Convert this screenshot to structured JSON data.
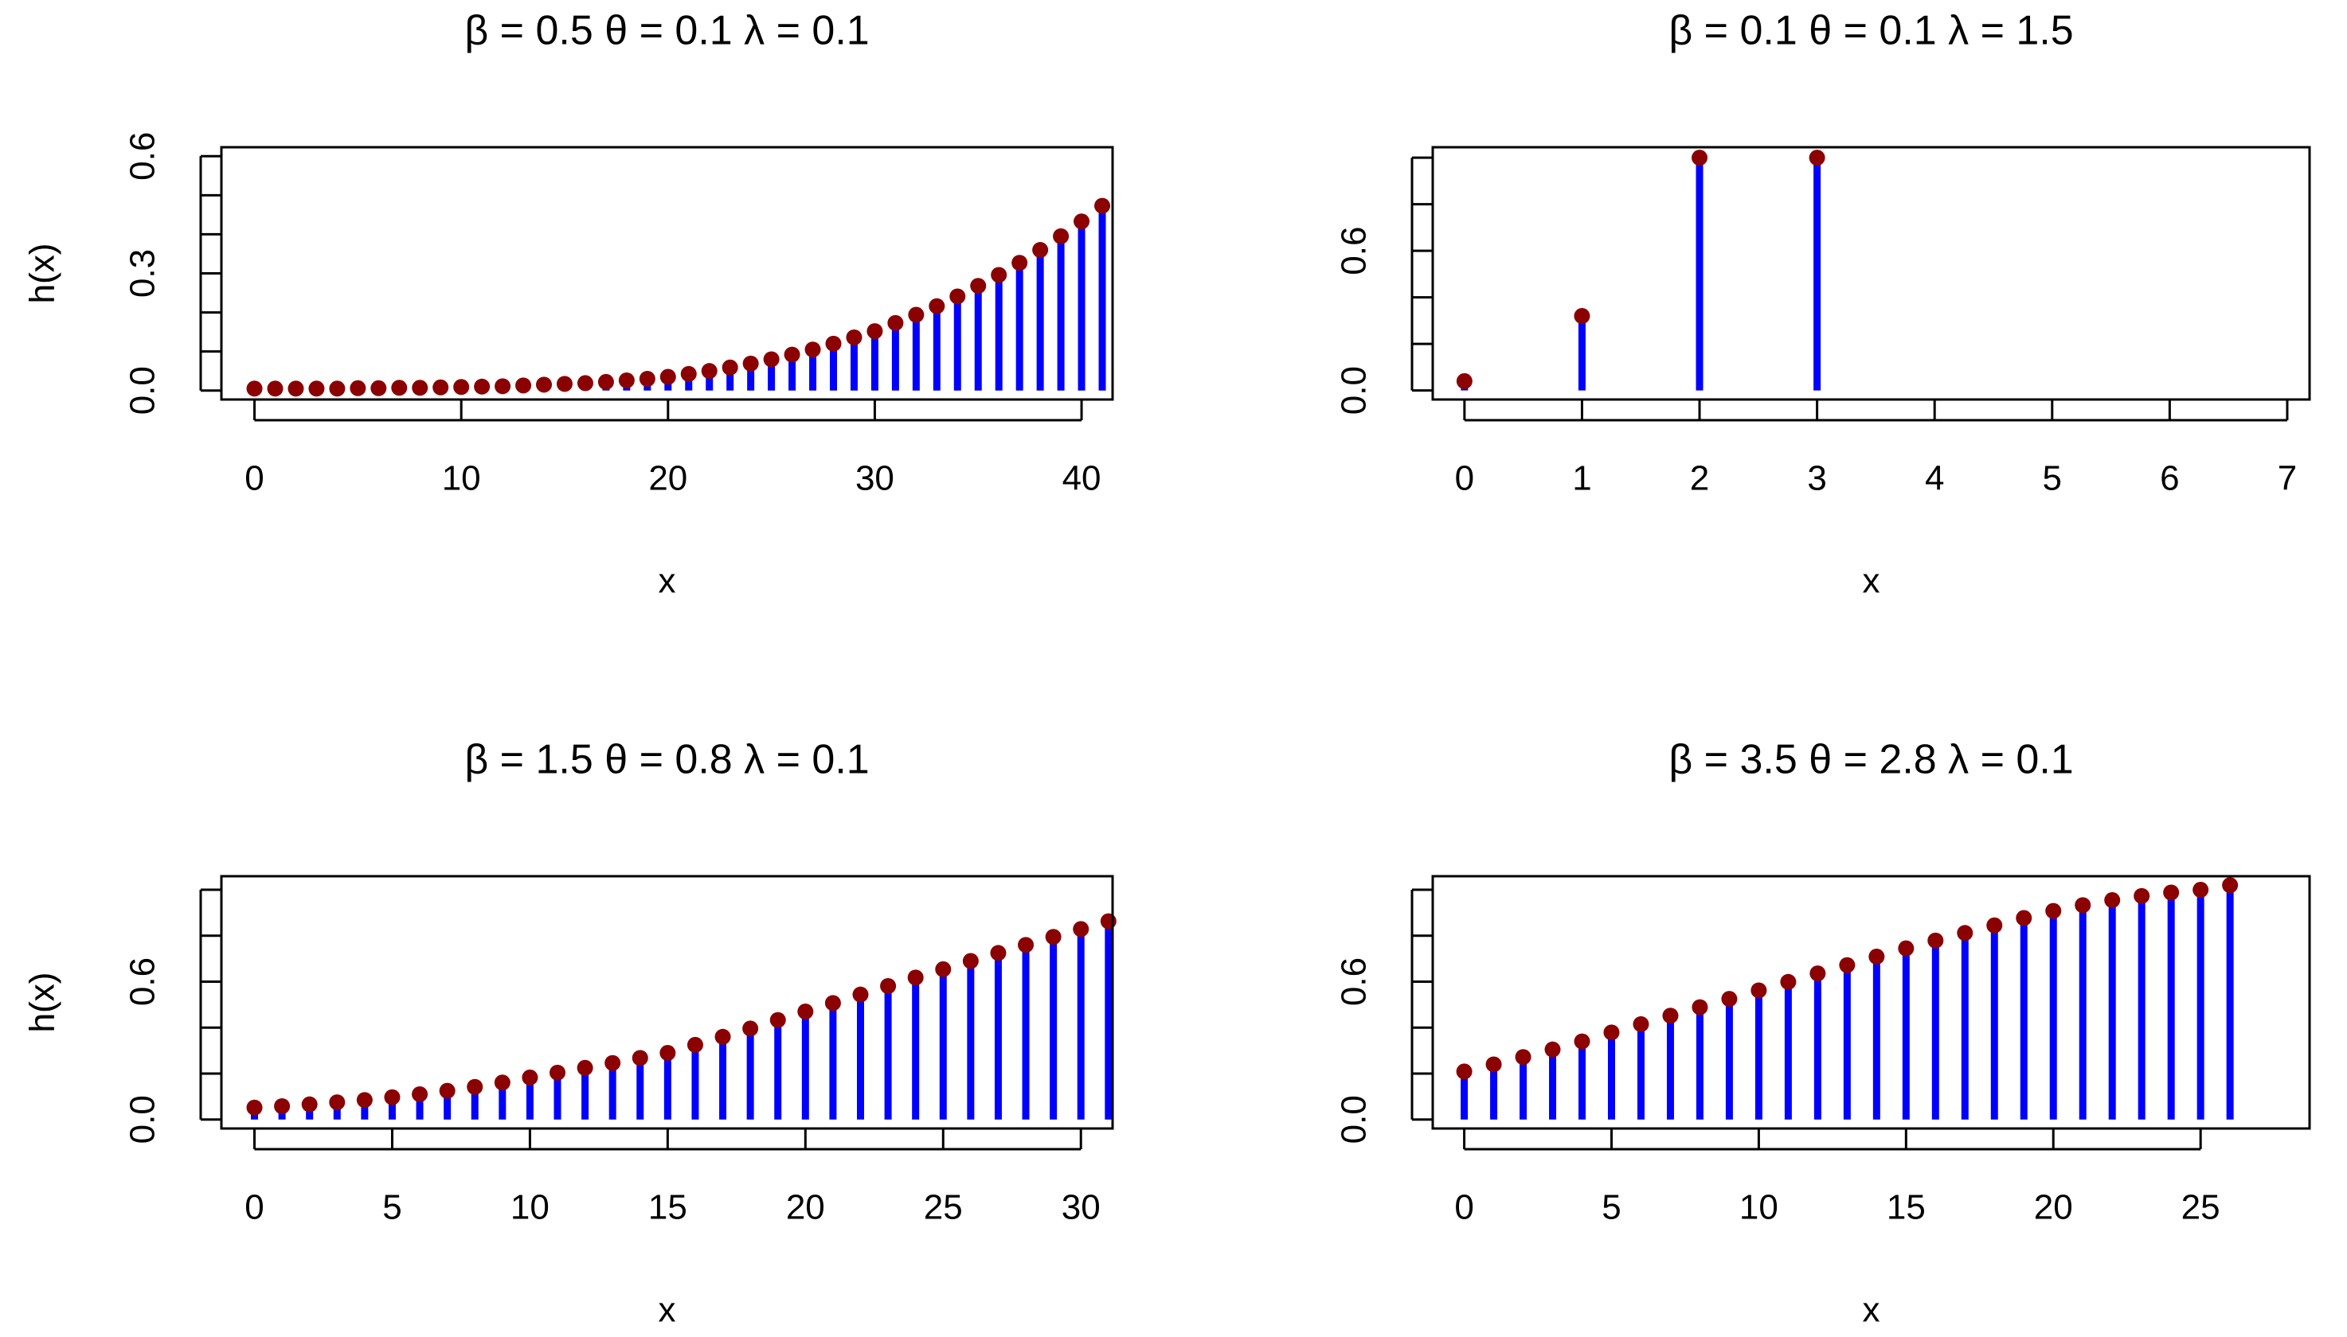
{
  "chart_data": [
    {
      "type": "stem",
      "title": "β = 0.5 θ = 0.1 λ = 0.1",
      "x_label": "x",
      "y_label": "h(x)",
      "x": [
        0,
        1,
        2,
        3,
        4,
        5,
        6,
        7,
        8,
        9,
        10,
        11,
        12,
        13,
        14,
        15,
        16,
        17,
        18,
        19,
        20,
        21,
        22,
        23,
        24,
        25,
        26,
        27,
        28,
        29,
        30,
        31,
        32,
        33,
        34,
        35,
        36,
        37,
        38,
        39,
        40,
        41
      ],
      "values": [
        0.005,
        0.005,
        0.005,
        0.005,
        0.005,
        0.006,
        0.006,
        0.007,
        0.007,
        0.008,
        0.009,
        0.01,
        0.011,
        0.013,
        0.015,
        0.017,
        0.019,
        0.022,
        0.026,
        0.03,
        0.035,
        0.0425,
        0.05,
        0.059,
        0.069,
        0.08,
        0.092,
        0.105,
        0.12,
        0.136,
        0.152,
        0.173,
        0.194,
        0.216,
        0.241,
        0.268,
        0.296,
        0.327,
        0.36,
        0.395,
        0.433,
        0.473
      ],
      "stem_color": "#0000ff",
      "point_color": "#8b0000",
      "xlim": [
        -1.6,
        41.5
      ],
      "ylim": [
        -0.023,
        0.623
      ],
      "xticks": [
        0,
        10,
        20,
        30,
        40
      ],
      "yticks": [
        {
          "value": 0,
          "label": "0.0"
        },
        {
          "value": 0.3,
          "label": "0.3"
        },
        {
          "value": 0.6,
          "label": "0.6"
        }
      ],
      "yminor_ticks": [
        0.1,
        0.2,
        0.4,
        0.5
      ]
    },
    {
      "type": "stem",
      "title": "β = 0.1 θ = 0.1 λ = 1.5",
      "x_label": "x",
      "y_label": "h(x)",
      "x": [
        0,
        1,
        2,
        3
      ],
      "values": [
        0.04,
        0.32,
        1.0,
        1.0
      ],
      "stem_color": "#0000ff",
      "point_color": "#8b0000",
      "xlim": [
        -0.27,
        7.19
      ],
      "ylim": [
        -0.039,
        1.045
      ],
      "xticks": [
        0,
        1,
        2,
        3,
        4,
        5,
        6,
        7
      ],
      "yticks": [
        {
          "value": 0,
          "label": "0.0"
        },
        {
          "value": 0.6,
          "label": "0.6"
        }
      ],
      "yminor_ticks": [
        0.2,
        0.4,
        0.8,
        1.0
      ]
    },
    {
      "type": "stem",
      "title": "β = 1.5 θ = 0.8 λ = 0.1",
      "x_label": "x",
      "y_label": "h(x)",
      "x": [
        0,
        1,
        2,
        3,
        4,
        5,
        6,
        7,
        8,
        9,
        10,
        11,
        12,
        13,
        14,
        15,
        16,
        17,
        18,
        19,
        20,
        21,
        22,
        23,
        24,
        25,
        26,
        27,
        28,
        29,
        30,
        31
      ],
      "values": [
        0.052,
        0.058,
        0.066,
        0.075,
        0.085,
        0.097,
        0.11,
        0.125,
        0.142,
        0.161,
        0.183,
        0.204,
        0.225,
        0.246,
        0.268,
        0.29,
        0.325,
        0.36,
        0.396,
        0.433,
        0.47,
        0.507,
        0.544,
        0.581,
        0.618,
        0.654,
        0.69,
        0.725,
        0.76,
        0.795,
        0.829,
        0.863
      ],
      "stem_color": "#0000ff",
      "point_color": "#8b0000",
      "xlim": [
        -1.2,
        31.15
      ],
      "ylim": [
        -0.039,
        1.059
      ],
      "xticks": [
        0,
        5,
        10,
        15,
        20,
        25,
        30
      ],
      "yticks": [
        {
          "value": 0,
          "label": "0.0"
        },
        {
          "value": 0.6,
          "label": "0.6"
        }
      ],
      "yminor_ticks": [
        0.2,
        0.4,
        0.8,
        1.0
      ]
    },
    {
      "type": "stem",
      "title": "β = 3.5 θ = 2.8 λ = 0.1",
      "x_label": "x",
      "y_label": "h(x)",
      "x": [
        0,
        1,
        2,
        3,
        4,
        5,
        6,
        7,
        8,
        9,
        10,
        11,
        12,
        13,
        14,
        15,
        16,
        17,
        18,
        19,
        20,
        21,
        22,
        23,
        24,
        25,
        26
      ],
      "values": [
        0.209,
        0.24,
        0.272,
        0.305,
        0.34,
        0.379,
        0.415,
        0.452,
        0.489,
        0.525,
        0.562,
        0.599,
        0.636,
        0.672,
        0.709,
        0.745,
        0.779,
        0.812,
        0.845,
        0.877,
        0.908,
        0.933,
        0.955,
        0.973,
        0.988,
        1.0,
        1.02
      ],
      "stem_color": "#0000ff",
      "point_color": "#8b0000",
      "xlim": [
        -1.07,
        28.7
      ],
      "ylim": [
        -0.039,
        1.059
      ],
      "xticks": [
        0,
        5,
        10,
        15,
        20,
        25
      ],
      "yticks": [
        {
          "value": 0,
          "label": "0.0"
        },
        {
          "value": 0.6,
          "label": "0.6"
        }
      ],
      "yminor_ticks": [
        0.2,
        0.4,
        0.8,
        1.0
      ]
    }
  ]
}
